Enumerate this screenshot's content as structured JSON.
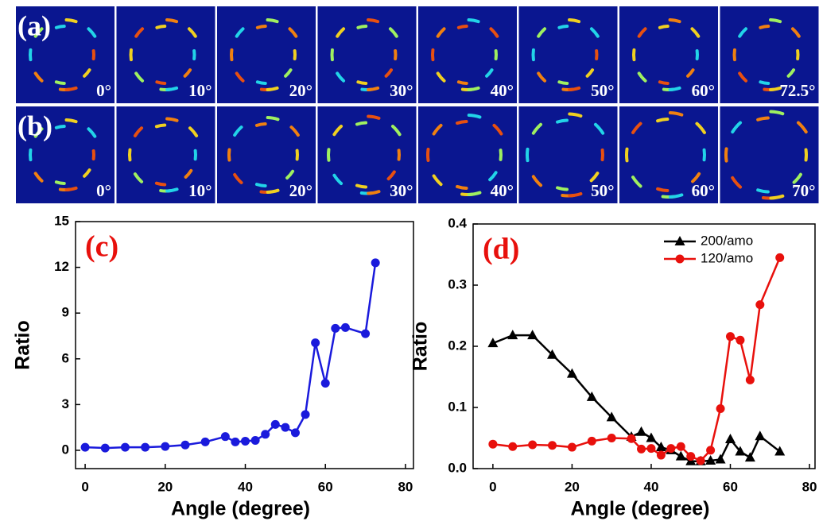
{
  "panels": [
    {
      "label": "(a)",
      "angles": [
        "0°",
        "10°",
        "20°",
        "30°",
        "40°",
        "50°",
        "60°",
        "72.5°"
      ]
    },
    {
      "label": "(b)",
      "angles": [
        "0°",
        "10°",
        "20°",
        "30°",
        "40°",
        "50°",
        "60°",
        "70°"
      ]
    }
  ],
  "chart_data": [
    {
      "type": "line",
      "title": "(c)",
      "x_label": "Angle (degree)",
      "y_label": "Ratio",
      "x": [
        0,
        5,
        10,
        15,
        20,
        25,
        30,
        35,
        37.5,
        40,
        42.5,
        45,
        47.5,
        50,
        52.5,
        55,
        57.5,
        60,
        62.5,
        65,
        70,
        72.5
      ],
      "series": [
        {
          "name": null,
          "color": "#1a1adc",
          "marker": "circle",
          "values": [
            0.2,
            0.15,
            0.2,
            0.2,
            0.25,
            0.35,
            0.55,
            0.9,
            0.55,
            0.6,
            0.65,
            1.05,
            1.7,
            1.5,
            1.15,
            2.35,
            7.05,
            4.4,
            8.0,
            8.05,
            7.65,
            12.3
          ]
        }
      ],
      "xlim": [
        -2.4,
        82
      ],
      "ylim": [
        -1.2,
        15
      ],
      "xticks": [
        0,
        20,
        40,
        60,
        80
      ],
      "yticks": [
        0,
        3,
        6,
        9,
        12,
        15
      ]
    },
    {
      "type": "line",
      "title": "(d)",
      "x_label": "Angle (degree)",
      "y_label": "Ratio",
      "x": [
        0,
        5,
        10,
        15,
        20,
        25,
        30,
        35,
        37.5,
        40,
        42.5,
        45,
        47.5,
        50,
        52.5,
        55,
        57.5,
        60,
        62.5,
        65,
        67.5,
        72.5
      ],
      "series": [
        {
          "name": "200/amo",
          "color": "#000000",
          "marker": "triangle",
          "values": [
            0.205,
            0.218,
            0.218,
            0.186,
            0.155,
            0.117,
            0.084,
            0.052,
            0.06,
            0.05,
            0.035,
            0.03,
            0.02,
            0.012,
            0.012,
            0.013,
            0.015,
            0.048,
            0.028,
            0.018,
            0.053,
            0.028
          ]
        },
        {
          "name": "120/amo",
          "color": "#e8100c",
          "marker": "circle",
          "values": [
            0.04,
            0.036,
            0.039,
            0.038,
            0.035,
            0.045,
            0.05,
            0.049,
            0.032,
            0.033,
            0.022,
            0.033,
            0.036,
            0.02,
            0.013,
            0.03,
            0.098,
            0.216,
            0.21,
            0.145,
            0.268,
            0.345
          ]
        }
      ],
      "xlim": [
        -5,
        81.4
      ],
      "ylim": [
        0,
        0.4
      ],
      "xticks": [
        0,
        20,
        40,
        60,
        80
      ],
      "yticks": [
        {
          "value": 0,
          "label": "0.0"
        },
        0.1,
        0.2,
        0.3,
        0.4
      ],
      "legend": "upper-right"
    }
  ]
}
